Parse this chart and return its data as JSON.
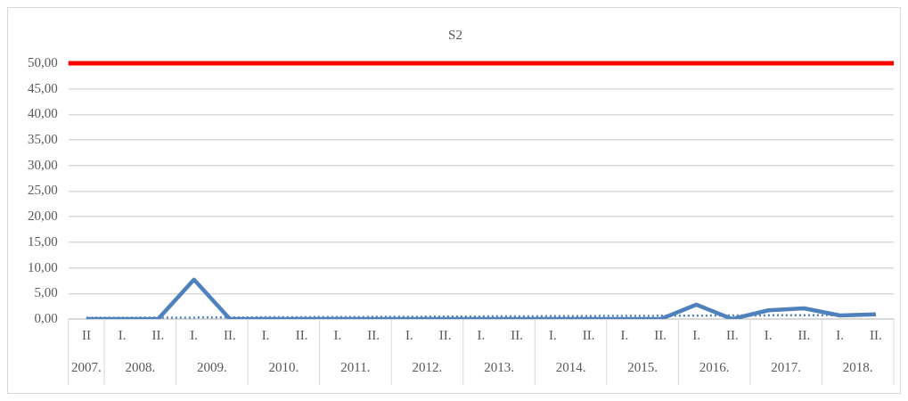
{
  "chart_data": {
    "type": "line",
    "title": "S2",
    "categories": [
      "II",
      "I.",
      "II.",
      "I.",
      "II.",
      "I.",
      "II.",
      "I.",
      "II.",
      "I.",
      "II.",
      "I.",
      "II.",
      "I.",
      "II.",
      "I.",
      "II.",
      "I.",
      "II.",
      "I.",
      "II.",
      "I.",
      "II."
    ],
    "annotations": [
      "2007.",
      "2008.",
      "2009.",
      "2010.",
      "2011.",
      "2012.",
      "2013.",
      "2014.",
      "2015.",
      "2016.",
      "2017.",
      "2018."
    ],
    "series": [
      {
        "color": "#4f81bd",
        "values": [
          0,
          0,
          0,
          7.7,
          0,
          0,
          0,
          0,
          0,
          0,
          0,
          0,
          0,
          0,
          0,
          0,
          0,
          2.8,
          0,
          1.7,
          2.1,
          0.7,
          0.9
        ]
      },
      {
        "color": "#4f81bd",
        "line_style": "dotted",
        "values": [
          0.2,
          null,
          null,
          null,
          null,
          null,
          null,
          null,
          null,
          null,
          null,
          null,
          null,
          null,
          null,
          null,
          null,
          null,
          null,
          null,
          null,
          null,
          0.8
        ]
      }
    ],
    "ylim": [
      0,
      50
    ],
    "yticks": [
      {
        "value": 0,
        "label": "0,00"
      },
      {
        "value": 5,
        "label": "5,00"
      },
      {
        "value": 10,
        "label": "10,00"
      },
      {
        "value": 15,
        "label": "15,00"
      },
      {
        "value": 20,
        "label": "20,00"
      },
      {
        "value": 25,
        "label": "25,00"
      },
      {
        "value": 30,
        "label": "30,00"
      },
      {
        "value": 35,
        "label": "35,00"
      },
      {
        "value": 40,
        "label": "40,00"
      },
      {
        "value": 45,
        "label": "45,00"
      },
      {
        "value": 50,
        "label": "50,00"
      }
    ],
    "ref_lines": [
      {
        "axis": "y",
        "value": 50,
        "color": "#ff0000"
      }
    ],
    "grid": "y",
    "legend": false,
    "marker": "none"
  }
}
